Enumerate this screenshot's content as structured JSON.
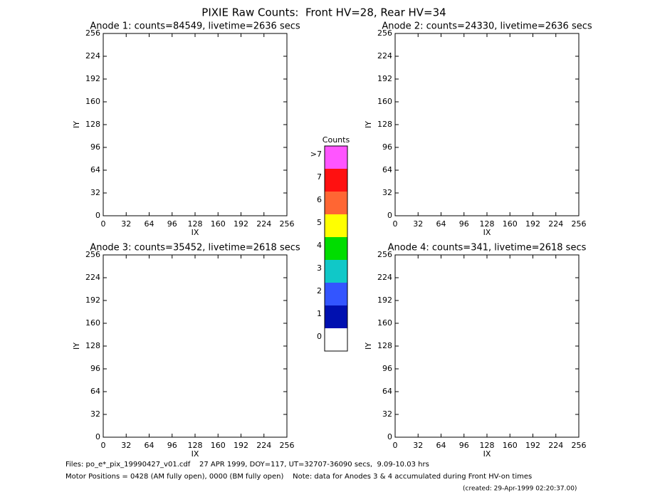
{
  "title": "PIXIE Raw Counts:  Front HV=28, Rear HV=34",
  "chart_data": [
    {
      "type": "heatmap",
      "title": "Anode 1: counts=84549, livetime=2636 secs",
      "xlabel": "IX",
      "ylabel": "IY",
      "xlim": [
        0,
        256
      ],
      "ylim": [
        0,
        256
      ],
      "xticks": [
        0,
        32,
        64,
        96,
        128,
        160,
        192,
        224,
        256
      ],
      "yticks": [
        0,
        32,
        64,
        96,
        128,
        160,
        192,
        224,
        256
      ]
    },
    {
      "type": "heatmap",
      "title": "Anode 2: counts=24330, livetime=2636 secs",
      "xlabel": "IX",
      "ylabel": "IY",
      "xlim": [
        0,
        256
      ],
      "ylim": [
        0,
        256
      ],
      "xticks": [
        0,
        32,
        64,
        96,
        128,
        160,
        192,
        224,
        256
      ],
      "yticks": [
        0,
        32,
        64,
        96,
        128,
        160,
        192,
        224,
        256
      ]
    },
    {
      "type": "heatmap",
      "title": "Anode 3: counts=35452, livetime=2618 secs",
      "xlabel": "IX",
      "ylabel": "IY",
      "xlim": [
        0,
        256
      ],
      "ylim": [
        0,
        256
      ],
      "xticks": [
        0,
        32,
        64,
        96,
        128,
        160,
        192,
        224,
        256
      ],
      "yticks": [
        0,
        32,
        64,
        96,
        128,
        160,
        192,
        224,
        256
      ]
    },
    {
      "type": "heatmap",
      "title": "Anode 4: counts=341, livetime=2618 secs",
      "xlabel": "IX",
      "ylabel": "IY",
      "xlim": [
        0,
        256
      ],
      "ylim": [
        0,
        256
      ],
      "xticks": [
        0,
        32,
        64,
        96,
        128,
        160,
        192,
        224,
        256
      ],
      "yticks": [
        0,
        32,
        64,
        96,
        128,
        160,
        192,
        224,
        256
      ]
    },
    {
      "type": "colorbar",
      "title": "Counts",
      "categories": [
        "0",
        "1",
        "2",
        "3",
        "4",
        "5",
        "6",
        "7",
        ">7"
      ],
      "colors": [
        "#ffffff",
        "#0010b0",
        "#3355ff",
        "#10c8c8",
        "#00dd00",
        "#ffff00",
        "#ff6633",
        "#ff1010",
        "#ff55ff"
      ]
    }
  ],
  "footer": [
    "Files: po_e*_pix_19990427_v01.cdf    27 APR 1999, DOY=117, UT=32707-36090 secs,  9.09-10.03 hrs",
    "Motor Positions = 0428 (AM fully open), 0000 (BM fully open)    Note: data for Anodes 3 & 4 accumulated during Front HV-on times",
    "(created: 29-Apr-1999 02:20:37.00)"
  ]
}
